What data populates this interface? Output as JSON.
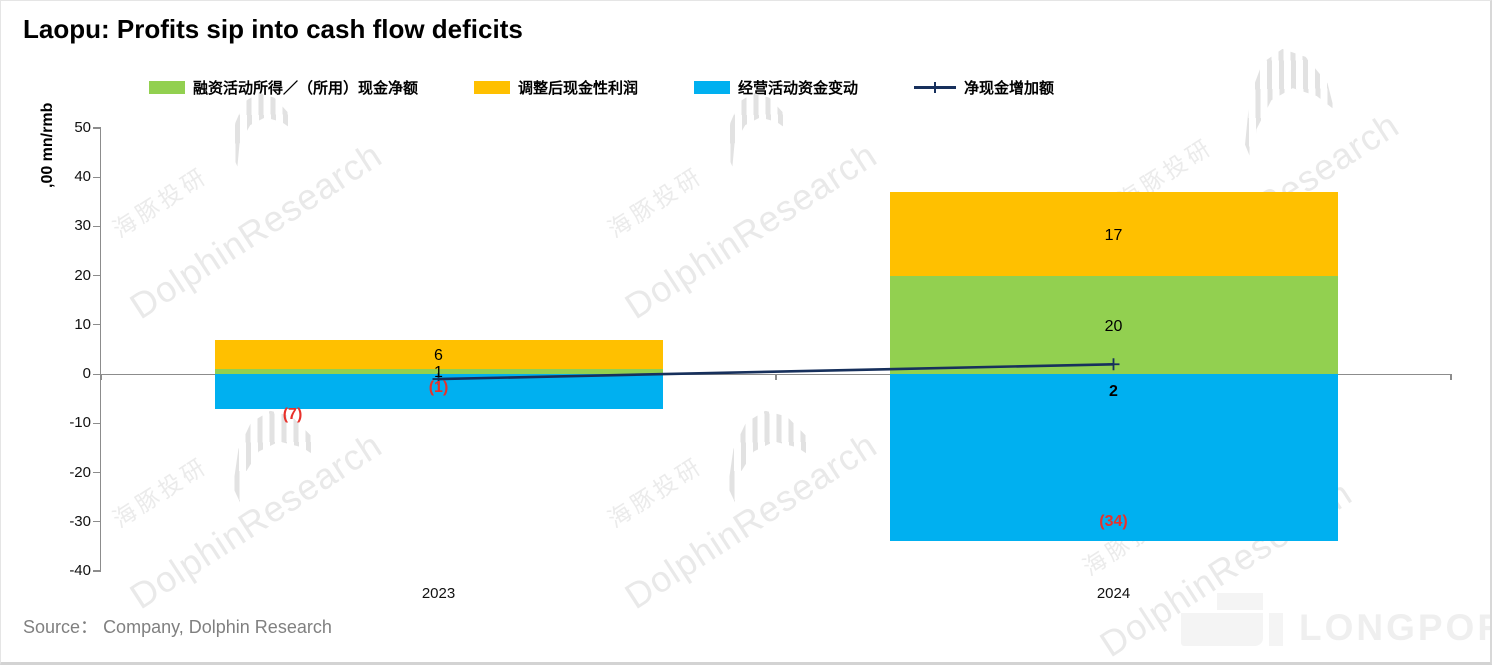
{
  "page": {
    "title": "Laopu: Profits sip into cash flow deficits",
    "source": {
      "label": "Source：",
      "value": "Company, Dolphin Research"
    },
    "watermark": {
      "cn": "海豚投研",
      "en": "DolphinResearch",
      "logo": "LONGPORT"
    }
  },
  "chart_data": {
    "type": "bar",
    "stacked": true,
    "title": "Laopu: Profits sip into cash flow deficits",
    "y_axis_title": ",00 mn/rmb",
    "categories": [
      "2023",
      "2024"
    ],
    "ylim": [
      -40,
      50
    ],
    "y_tick_step": 10,
    "grid": false,
    "legend_position": "top",
    "series": [
      {
        "name": "融资活动所得／（所用）现金净额",
        "type": "bar",
        "color": "#92D050",
        "values": [
          1,
          20
        ]
      },
      {
        "name": "调整后现金性利润",
        "type": "bar",
        "color": "#FFC000",
        "values": [
          6,
          17
        ]
      },
      {
        "name": "经营活动资金变动",
        "type": "bar",
        "color": "#00B0F0",
        "values": [
          -7,
          -34
        ]
      },
      {
        "name": "净现金增加额",
        "type": "line",
        "color": "#17305C",
        "values": [
          -1,
          2
        ]
      }
    ],
    "data_labels": [
      {
        "text": "6",
        "cat": 0,
        "v": 3.7,
        "color": "#000000",
        "bold": false
      },
      {
        "text": "1",
        "cat": 0,
        "v": 0.3,
        "color": "#000000",
        "bold": false
      },
      {
        "text": "(1)",
        "cat": 0,
        "v": -2.9,
        "color": "#E8312B",
        "bold": true
      },
      {
        "text": "(7)",
        "cat": 0,
        "v": -8.3,
        "dx": -146,
        "color": "#E8312B",
        "bold": true
      },
      {
        "text": "17",
        "cat": 1,
        "v": 28,
        "color": "#000000",
        "bold": false
      },
      {
        "text": "20",
        "cat": 1,
        "v": 9.5,
        "color": "#000000",
        "bold": false
      },
      {
        "text": "2",
        "cat": 1,
        "v": -3.6,
        "color": "#000000",
        "bold": true
      },
      {
        "text": "(34)",
        "cat": 1,
        "v": -30,
        "color": "#E8312B",
        "bold": true
      }
    ]
  }
}
